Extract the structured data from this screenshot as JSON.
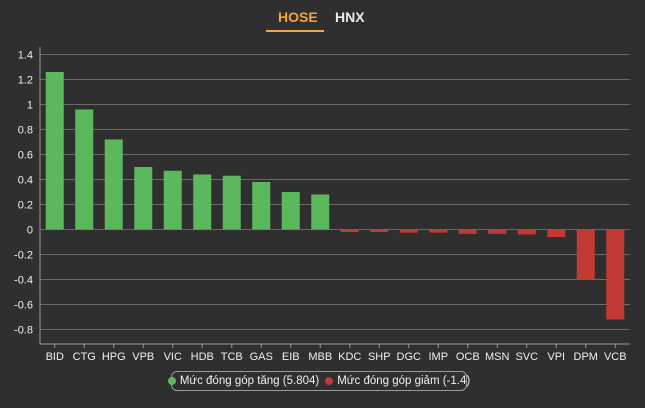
{
  "tabs": {
    "hose_label": "HOSE",
    "hnx_label": "HNX",
    "active": "HOSE",
    "accent_color": "#f7a23c"
  },
  "legend": {
    "increase_label": "Mức đóng góp tăng (5.804)",
    "decrease_label": "Mức đóng góp giảm (-1.4)"
  },
  "colors": {
    "positive": "#5cb85c",
    "negative": "#c13a33",
    "background": "#2f2f2f",
    "grid": "#6a6a6a"
  },
  "chart_data": {
    "type": "bar",
    "categories": [
      "BID",
      "CTG",
      "HPG",
      "VPB",
      "VIC",
      "HDB",
      "TCB",
      "GAS",
      "EIB",
      "MBB",
      "KDC",
      "SHP",
      "DGC",
      "IMP",
      "OCB",
      "MSN",
      "SVC",
      "VPI",
      "DPM",
      "VCB"
    ],
    "values": [
      1.26,
      0.96,
      0.72,
      0.5,
      0.47,
      0.44,
      0.43,
      0.38,
      0.3,
      0.28,
      -0.02,
      -0.02,
      -0.025,
      -0.025,
      -0.035,
      -0.035,
      -0.04,
      -0.06,
      -0.4,
      -0.72
    ],
    "ylim": [
      -0.9,
      1.4
    ],
    "yticks": [
      "1.4",
      "1.2",
      "1",
      "0.8",
      "0.6",
      "0.4",
      "0.2",
      "0",
      "-0.2",
      "-0.4",
      "-0.6",
      "-0.8"
    ],
    "ytick_values": [
      1.4,
      1.2,
      1.0,
      0.8,
      0.6,
      0.4,
      0.2,
      0,
      -0.2,
      -0.4,
      -0.6,
      -0.8
    ],
    "grid": true,
    "legend_position": "bottom-center"
  }
}
